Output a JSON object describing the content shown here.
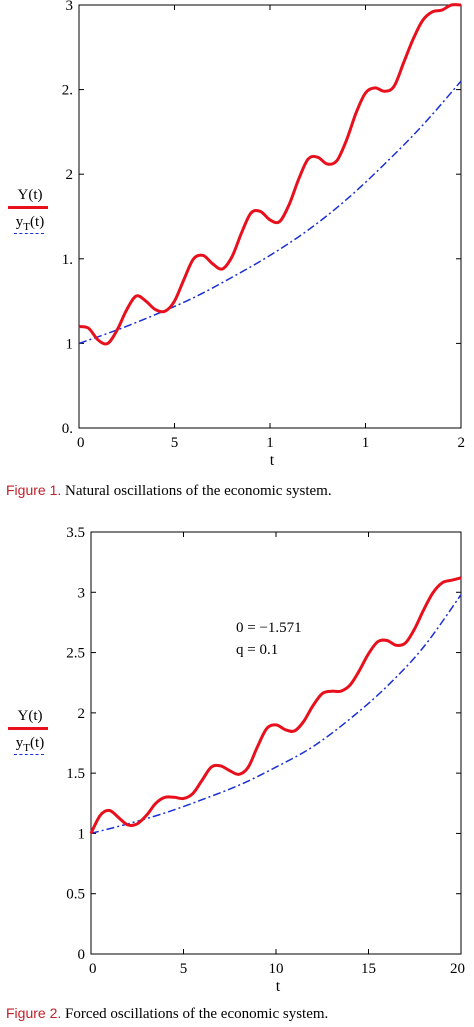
{
  "chart_data": [
    {
      "type": "line",
      "xlabel": "t",
      "ylabel": "",
      "xlim": [
        0,
        20
      ],
      "ylim": [
        0.5,
        3
      ],
      "x_tick_labels": [
        "0",
        "5",
        "1",
        "1",
        "2"
      ],
      "y_tick_labels": [
        "0.",
        "1",
        "1.",
        "2",
        "2.",
        "3"
      ],
      "legend": [
        "Y(t)",
        "y_T(t)"
      ],
      "legend_position": "left-outside",
      "series": [
        {
          "name": "Y(t)",
          "style": "solid",
          "color": "#e8101c",
          "x": [
            0,
            0.5,
            1,
            1.5,
            2,
            2.5,
            3,
            3.5,
            4,
            4.5,
            5,
            5.5,
            6,
            6.5,
            7,
            7.5,
            8,
            8.5,
            9,
            9.5,
            10,
            10.5,
            11,
            11.5,
            12,
            12.5,
            13,
            13.5,
            14,
            14.5,
            15,
            15.5,
            16,
            16.5,
            17,
            17.5,
            18,
            18.5,
            19,
            19.5,
            20
          ],
          "y": [
            1.1,
            1.09,
            1.02,
            1.0,
            1.08,
            1.2,
            1.28,
            1.25,
            1.2,
            1.19,
            1.25,
            1.38,
            1.5,
            1.52,
            1.47,
            1.44,
            1.51,
            1.65,
            1.77,
            1.78,
            1.73,
            1.72,
            1.82,
            1.97,
            2.09,
            2.1,
            2.06,
            2.08,
            2.2,
            2.36,
            2.48,
            2.51,
            2.49,
            2.52,
            2.66,
            2.8,
            2.91,
            2.96,
            2.97,
            3.0,
            3.0
          ]
        },
        {
          "name": "y_T(t)",
          "style": "dash-dot",
          "color": "#1a2fd6",
          "x": [
            0,
            2,
            4,
            6,
            8,
            10,
            12,
            14,
            16,
            18,
            20
          ],
          "y": [
            1.0,
            1.08,
            1.17,
            1.27,
            1.39,
            1.52,
            1.67,
            1.85,
            2.06,
            2.29,
            2.55
          ]
        }
      ]
    },
    {
      "type": "line",
      "xlabel": "t",
      "ylabel": "",
      "xlim": [
        0,
        20
      ],
      "ylim": [
        0,
        3.5
      ],
      "x_tick_labels": [
        "0",
        "5",
        "10",
        "15",
        "20"
      ],
      "y_tick_labels": [
        "0",
        "0.5",
        "1",
        "1.5",
        "2",
        "2.5",
        "3",
        "3.5"
      ],
      "legend": [
        "Y(t)",
        "y_T(t)"
      ],
      "legend_position": "left-outside",
      "annotations": [
        "0 = −1.571",
        "q = 0.1"
      ],
      "series": [
        {
          "name": "Y(t)",
          "style": "solid",
          "color": "#e8101c",
          "x": [
            0,
            0.5,
            1,
            1.5,
            2,
            2.5,
            3,
            3.5,
            4,
            4.5,
            5,
            5.5,
            6,
            6.5,
            7,
            7.5,
            8,
            8.5,
            9,
            9.5,
            10,
            10.5,
            11,
            11.5,
            12,
            12.5,
            13,
            13.5,
            14,
            14.5,
            15,
            15.5,
            16,
            16.5,
            17,
            17.5,
            18,
            18.5,
            19,
            19.5,
            20
          ],
          "y": [
            1.0,
            1.15,
            1.19,
            1.13,
            1.07,
            1.08,
            1.15,
            1.25,
            1.3,
            1.3,
            1.29,
            1.33,
            1.44,
            1.55,
            1.56,
            1.52,
            1.49,
            1.55,
            1.72,
            1.87,
            1.9,
            1.86,
            1.85,
            1.93,
            2.06,
            2.16,
            2.18,
            2.18,
            2.23,
            2.35,
            2.49,
            2.59,
            2.6,
            2.56,
            2.58,
            2.7,
            2.86,
            3.0,
            3.08,
            3.1,
            3.12
          ]
        },
        {
          "name": "y_T(t)",
          "style": "dash-dot",
          "color": "#1a2fd6",
          "x": [
            0,
            2,
            4,
            6,
            8,
            10,
            12,
            14,
            16,
            18,
            20
          ],
          "y": [
            1.0,
            1.08,
            1.17,
            1.28,
            1.4,
            1.55,
            1.72,
            1.95,
            2.22,
            2.55,
            2.98
          ]
        }
      ]
    }
  ],
  "figure1": {
    "legend_y": "Y(t)",
    "legend_yt_base": "y",
    "legend_yt_sub": "T",
    "legend_yt_arg": "(t)",
    "caption_label": "Figure 1.",
    "caption_text": " Natural oscillations of the economic system."
  },
  "figure2": {
    "legend_y": "Y(t)",
    "legend_yt_base": "y",
    "legend_yt_sub": "T",
    "legend_yt_arg": "(t)",
    "caption_label": "Figure 2.",
    "caption_text": " Forced oscillations of the economic system."
  },
  "colors": {
    "y_curve": "#e8101c",
    "trend_curve": "#1a2fd6",
    "caption_label": "#c0202a"
  }
}
